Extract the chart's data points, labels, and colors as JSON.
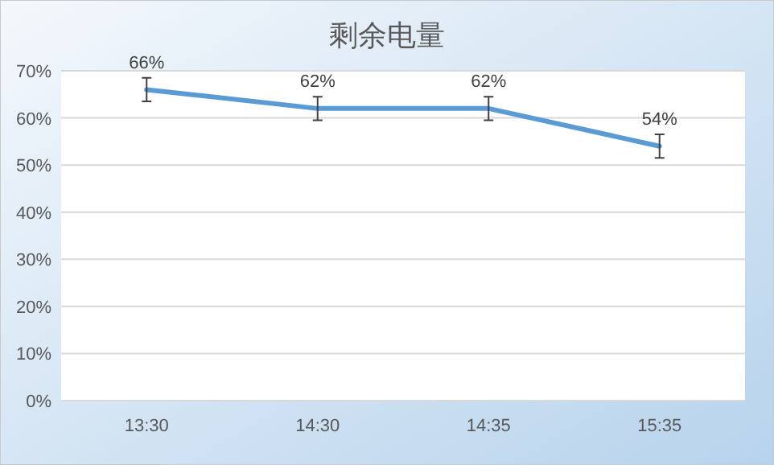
{
  "chart_data": {
    "type": "line",
    "title": "剩余电量",
    "categories": [
      "13:30",
      "14:30",
      "14:35",
      "15:35"
    ],
    "series": [
      {
        "color": "#5b9bd5",
        "values": [
          66,
          62,
          62,
          54
        ],
        "errors": [
          2.5,
          2.5,
          2.5,
          2.5
        ],
        "value_labels": [
          "66%",
          "62%",
          "62%",
          "54%"
        ]
      }
    ],
    "ylim": [
      0,
      70
    ],
    "yticks": [
      {
        "value": 0,
        "label": "0%"
      },
      {
        "value": 10,
        "label": "10%"
      },
      {
        "value": 20,
        "label": "20%"
      },
      {
        "value": 30,
        "label": "30%"
      },
      {
        "value": 40,
        "label": "40%"
      },
      {
        "value": 50,
        "label": "50%"
      },
      {
        "value": 60,
        "label": "60%"
      },
      {
        "value": 70,
        "label": "70%"
      }
    ],
    "grid": "y",
    "marker": "none",
    "line_style": "solid"
  }
}
